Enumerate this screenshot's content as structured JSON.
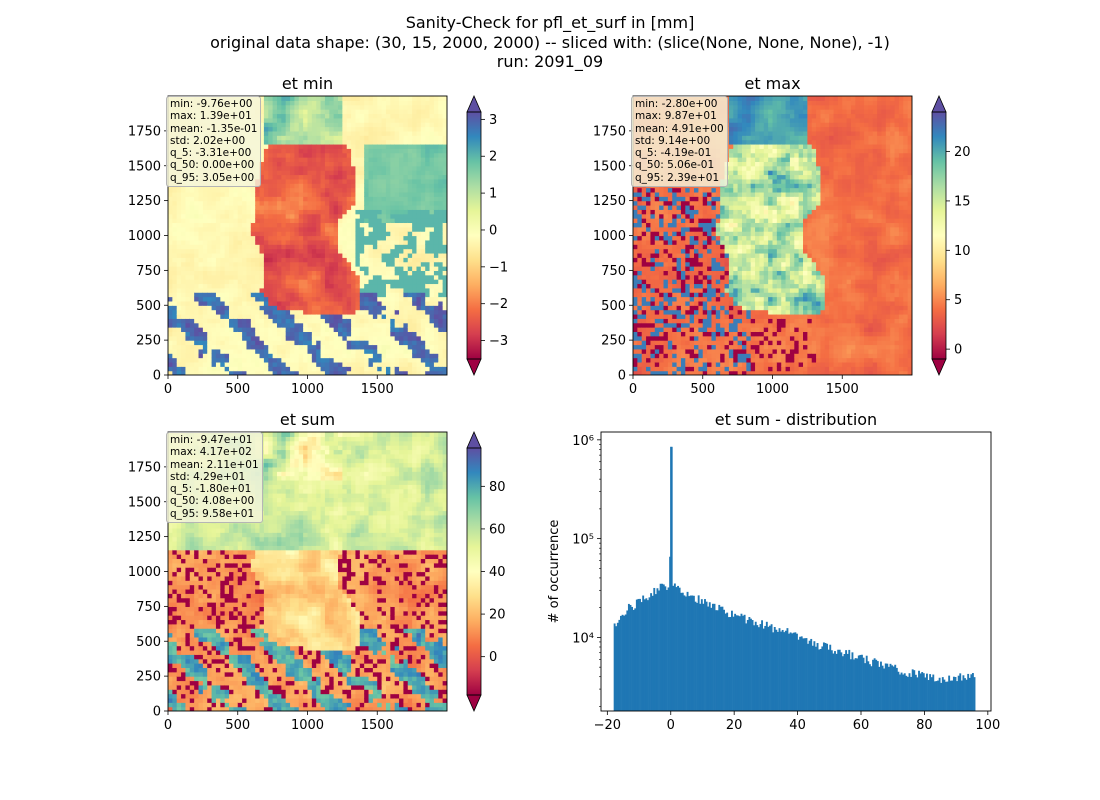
{
  "figure": {
    "title_lines": [
      "Sanity-Check for pfl_et_surf in [mm]",
      "original data shape: (30, 15, 2000, 2000) -- sliced with: (slice(None, None, None), -1)",
      "run: 2091_09"
    ]
  },
  "chart_data": [
    {
      "type": "heatmap",
      "title": "et min",
      "colormap": "Spectral",
      "colorbar": {
        "ticks": [
          -3,
          -2,
          -1,
          0,
          1,
          2,
          3
        ],
        "range": [
          -3.5,
          3.2
        ],
        "extend": "both"
      },
      "x_ticks": [
        0,
        500,
        1000,
        1500
      ],
      "y_ticks": [
        0,
        250,
        500,
        750,
        1000,
        1250,
        1500,
        1750
      ],
      "stats": [
        "min: -9.76e+00",
        "max: 1.39e+01",
        "mean: -1.35e-01",
        "std: 2.02e+00",
        "q_5: -3.31e+00",
        "q_50: 0.00e+00",
        "q_95: 3.05e+00"
      ]
    },
    {
      "type": "heatmap",
      "title": "et max",
      "colormap": "Spectral",
      "colorbar": {
        "ticks": [
          0,
          5,
          10,
          15,
          20
        ],
        "range": [
          -1,
          24
        ],
        "extend": "both"
      },
      "x_ticks": [
        0,
        500,
        1000,
        1500
      ],
      "y_ticks": [
        0,
        250,
        500,
        750,
        1000,
        1250,
        1500,
        1750
      ],
      "stats": [
        "min: -2.80e+00",
        "max: 9.87e+01",
        "mean: 4.91e+00",
        "std: 9.14e+00",
        "q_5: -4.19e-01",
        "q_50: 5.06e-01",
        "q_95: 2.39e+01"
      ]
    },
    {
      "type": "heatmap",
      "title": "et sum",
      "colormap": "Spectral",
      "colorbar": {
        "ticks": [
          0,
          20,
          40,
          60,
          80
        ],
        "range": [
          -18,
          98
        ],
        "extend": "both"
      },
      "x_ticks": [
        0,
        500,
        1000,
        1500
      ],
      "y_ticks": [
        0,
        250,
        500,
        750,
        1000,
        1250,
        1500,
        1750
      ],
      "stats": [
        "min: -9.47e+01",
        "max: 4.17e+02",
        "mean: 2.11e+01",
        "std: 4.29e+01",
        "q_5: -1.80e+01",
        "q_50: 4.08e+00",
        "q_95: 9.58e+01"
      ]
    },
    {
      "type": "bar",
      "title": "et sum - distribution",
      "ylabel": "# of occurrence",
      "yscale": "log",
      "ylim": [
        1800,
        1200000
      ],
      "xlim": [
        -22,
        101
      ],
      "x_ticks": [
        -20,
        0,
        20,
        40,
        60,
        80,
        100
      ],
      "y_ticks": [
        {
          "value": 10000,
          "label": "10⁴"
        },
        {
          "value": 100000,
          "label": "10⁵"
        },
        {
          "value": 1000000,
          "label": "10⁶"
        }
      ],
      "bar_color": "#1f77b4",
      "series": [
        {
          "anchors": [
            [
              -18,
              13500
            ],
            [
              -14,
              19000
            ],
            [
              -9,
              24000
            ],
            [
              -3,
              32000
            ],
            [
              -0.3,
              35000
            ],
            [
              0,
              850000
            ],
            [
              0.3,
              33000
            ],
            [
              5,
              27000
            ],
            [
              15,
              20000
            ],
            [
              25,
              14500
            ],
            [
              35,
              12000
            ],
            [
              45,
              8700
            ],
            [
              55,
              7000
            ],
            [
              65,
              5500
            ],
            [
              75,
              4400
            ],
            [
              85,
              3800
            ],
            [
              95,
              4200
            ]
          ]
        }
      ]
    }
  ]
}
